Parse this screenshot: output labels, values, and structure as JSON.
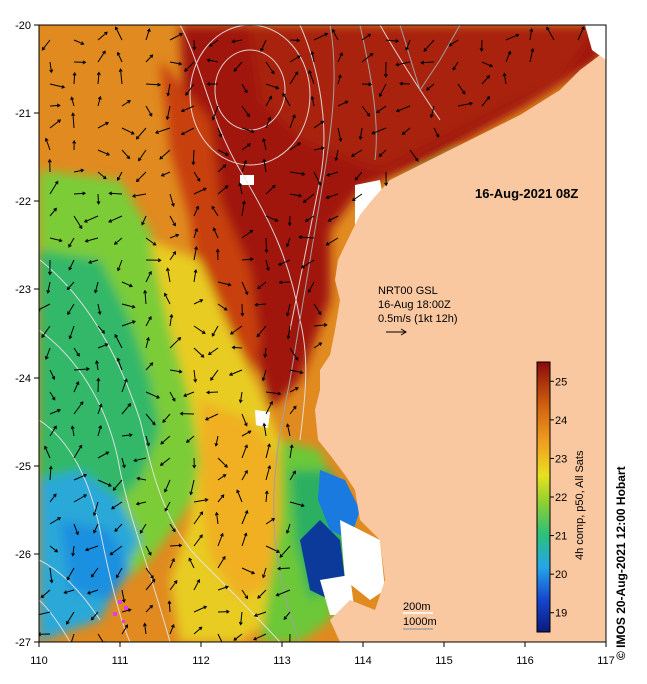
{
  "map": {
    "timestamp_title": "16-Aug-2021 08Z",
    "currents_label": {
      "line1": "NRT00 GSL",
      "line2": "16-Aug 18:00Z",
      "line3": "0.5m/s (1kt 12h)"
    },
    "depth_contours": {
      "shallow": "200m",
      "deep": "1000m"
    },
    "lon_ticks": [
      "110",
      "111",
      "112",
      "113",
      "114",
      "115",
      "116",
      "117"
    ],
    "lat_ticks": [
      "-20",
      "-21",
      "-22",
      "-23",
      "-24",
      "-25",
      "-26",
      "-27"
    ],
    "colors": {
      "land": "#f9c8a0",
      "cloud": "#ffffff",
      "contour": "#dcdcdc"
    }
  },
  "colorbar": {
    "title": "4h comp, p50, All Sats",
    "ticks": [
      "19",
      "20",
      "21",
      "22",
      "23",
      "24",
      "25"
    ],
    "range": [
      18.5,
      25.5
    ]
  },
  "credit": {
    "copyright_symbol": "©",
    "text": "IMOS 20-Aug-2021 12:00 Hobart"
  }
}
